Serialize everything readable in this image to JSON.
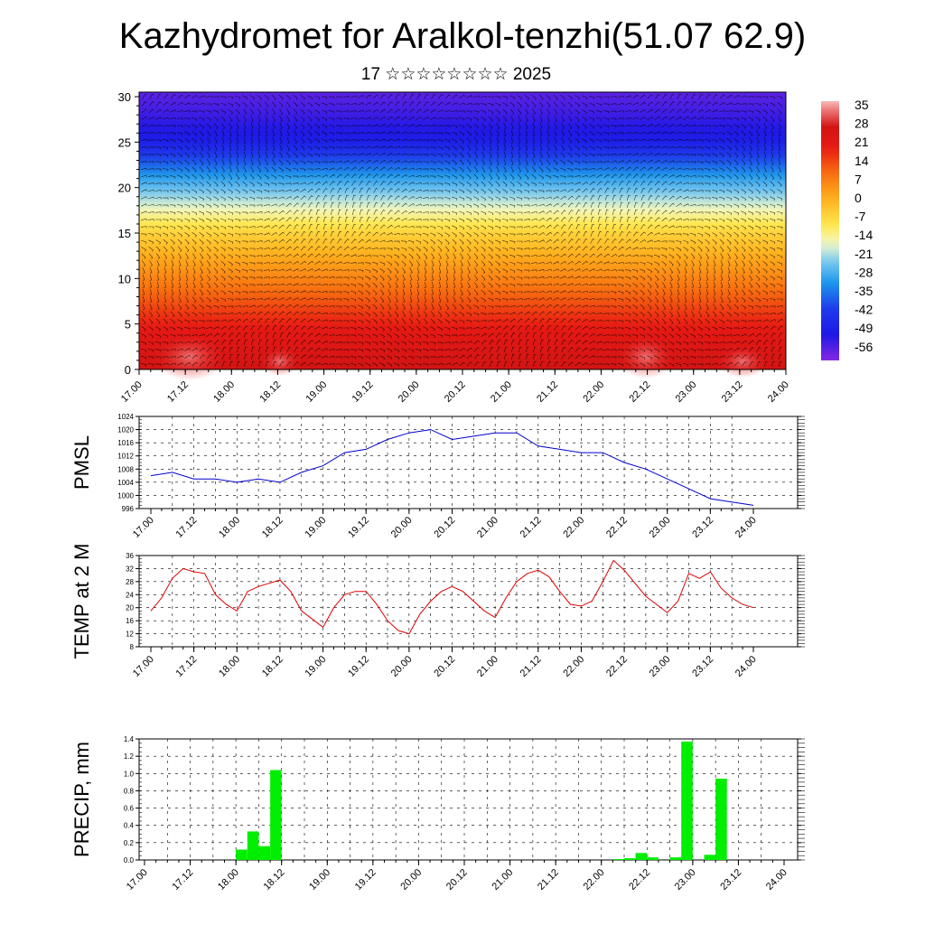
{
  "header": {
    "title": "Kazhydromet for Aralkol-tenzhi(51.07 62.9)",
    "subtitle": "17 ☆☆☆☆☆☆☆☆ 2025"
  },
  "time_ticks": [
    "17.00",
    "17.12",
    "18.00",
    "18.12",
    "19.00",
    "19.12",
    "20.00",
    "20.12",
    "21.00",
    "21.12",
    "22.00",
    "22.12",
    "23.00",
    "23.12",
    "24.00"
  ],
  "colors": {
    "pmsl_line": "#0000cc",
    "temp_line": "#dd0000",
    "precip_bar": "#00ee00",
    "grid": "#000000"
  },
  "chart_data": [
    {
      "type": "heatmap",
      "title": "",
      "xlabel": "",
      "ylabel": "",
      "y_ticks": [
        "0",
        "5",
        "10",
        "15",
        "20",
        "25",
        "30"
      ],
      "ylim": [
        0,
        30.5
      ],
      "colorbar_labels": [
        "35",
        "28",
        "21",
        "14",
        "7",
        "0",
        "-7",
        "-14",
        "-21",
        "-28",
        "-35",
        "-42",
        "-49",
        "-56"
      ],
      "colorbar_range": [
        -60,
        40
      ],
      "profile": {
        "levels": [
          0,
          4,
          8,
          12,
          15,
          17,
          19,
          21,
          23,
          25,
          28,
          30.5
        ],
        "values": [
          30,
          24,
          14,
          4,
          -4,
          -12,
          -20,
          -28,
          -38,
          -48,
          -53,
          -56
        ]
      },
      "overlay": "wind barbs"
    },
    {
      "type": "line",
      "ylabel": "PMSL",
      "y_ticks": [
        "996",
        "1000",
        "1004",
        "1008",
        "1012",
        "1016",
        "1020",
        "1024"
      ],
      "ylim": [
        996,
        1024
      ],
      "x_hours": [
        0,
        6,
        12,
        18,
        24,
        30,
        36,
        42,
        48,
        54,
        60,
        66,
        72,
        78,
        84,
        90,
        96,
        102,
        108,
        114,
        120,
        126,
        132,
        138,
        144,
        150,
        156,
        162,
        168
      ],
      "series": [
        {
          "values": [
            1006,
            1007,
            1005,
            1005,
            1004,
            1005,
            1004,
            1007,
            1009,
            1013,
            1014,
            1017,
            1019,
            1020,
            1017,
            1018,
            1019,
            1019,
            1015,
            1014,
            1013,
            1013,
            1010,
            1008,
            1005,
            1002,
            999,
            998,
            997
          ]
        }
      ]
    },
    {
      "type": "line",
      "ylabel": "TEMP at 2 M",
      "y_ticks": [
        "8",
        "12",
        "16",
        "20",
        "24",
        "28",
        "32",
        "36"
      ],
      "ylim": [
        8,
        36
      ],
      "x_hours": [
        0,
        3,
        6,
        9,
        12,
        15,
        18,
        21,
        24,
        27,
        30,
        33,
        36,
        39,
        42,
        45,
        48,
        51,
        54,
        57,
        60,
        63,
        66,
        69,
        72,
        75,
        78,
        81,
        84,
        87,
        90,
        93,
        96,
        99,
        102,
        105,
        108,
        111,
        114,
        117,
        120,
        123,
        126,
        129,
        132,
        135,
        138,
        141,
        144,
        147,
        150,
        153,
        156,
        159,
        162,
        165,
        168
      ],
      "series": [
        {
          "values": [
            19,
            23,
            29,
            32,
            31,
            30.5,
            24,
            21,
            19,
            25,
            26.5,
            27.5,
            28.5,
            25,
            19,
            16.5,
            14,
            20,
            24,
            25,
            25,
            21,
            16,
            13,
            12,
            18,
            22,
            25,
            26.5,
            25,
            22,
            19,
            17,
            23,
            28,
            30.5,
            31.5,
            29.5,
            25,
            21,
            20.5,
            22,
            28,
            34.5,
            31.5,
            27.5,
            23.5,
            21,
            18.5,
            22,
            30.5,
            29,
            31,
            26,
            23,
            21,
            20
          ]
        }
      ]
    },
    {
      "type": "bar",
      "ylabel": "PRECIP, mm",
      "y_ticks": [
        "0.0",
        "0.2",
        "0.4",
        "0.6",
        "0.8",
        "1.0",
        "1.2",
        "1.4"
      ],
      "ylim": [
        0,
        1.4
      ],
      "bars": [
        {
          "h": 24,
          "v": 0.12
        },
        {
          "h": 27,
          "v": 0.33
        },
        {
          "h": 30,
          "v": 0.16
        },
        {
          "h": 33,
          "v": 1.04
        },
        {
          "h": 123,
          "v": 0.01
        },
        {
          "h": 126,
          "v": 0.02
        },
        {
          "h": 129,
          "v": 0.08
        },
        {
          "h": 132,
          "v": 0.03
        },
        {
          "h": 138,
          "v": 0.03
        },
        {
          "h": 141,
          "v": 1.37
        },
        {
          "h": 147,
          "v": 0.06
        },
        {
          "h": 150,
          "v": 0.94
        }
      ]
    }
  ]
}
